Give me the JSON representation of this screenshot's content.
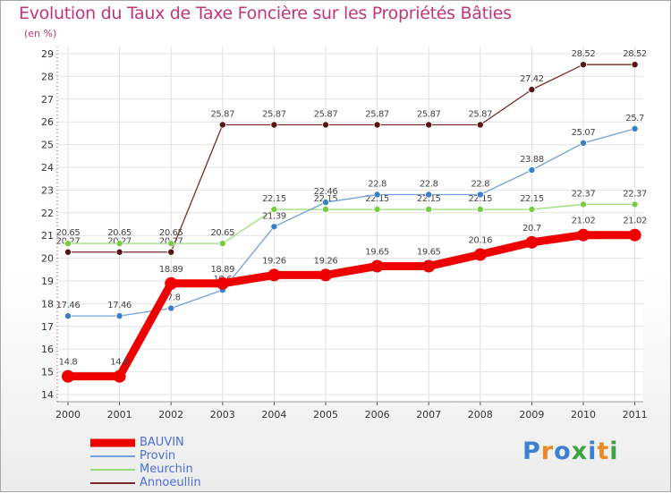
{
  "title": "Evolution du Taux de Taxe Foncière sur les Propriétés Bâties",
  "subtitle": "(en %)",
  "logo_text": "Proxiti",
  "logo_colors": [
    "#3d7fd1",
    "#e98a22",
    "#3d7fd1",
    "#3aa63d",
    "#3d7fd1",
    "#e98a22",
    "#3aa63d"
  ],
  "chart_data": {
    "type": "line",
    "title": "Evolution du Taux de Taxe Foncière sur les Propriétés Bâties",
    "ylabel": "(en %)",
    "xlabel": "",
    "ylim": [
      14,
      29
    ],
    "yticks": [
      "14",
      "15",
      "16",
      "17",
      "18",
      "19",
      "20",
      "21",
      "22",
      "23",
      "24",
      "25",
      "26",
      "27",
      "28",
      "29"
    ],
    "categories": [
      "2000",
      "2001",
      "2002",
      "2003",
      "2004",
      "2005",
      "2006",
      "2007",
      "2008",
      "2009",
      "2010",
      "2011"
    ],
    "grid": true,
    "legend_position": "bottom-left",
    "series": [
      {
        "name": "Annoeullin",
        "color": "#7a2a2a",
        "marker_color": "#5a1515",
        "values": [
          20.27,
          20.27,
          20.27,
          25.87,
          25.87,
          25.87,
          25.87,
          25.87,
          25.87,
          27.42,
          28.52,
          28.52
        ],
        "labels": [
          "20.27",
          "20.27",
          "20.27",
          "25.87",
          "25.87",
          "25.87",
          "25.87",
          "25.87",
          "25.87",
          "27.42",
          "28.52",
          "28.52"
        ]
      },
      {
        "name": "Meurchin",
        "color": "#99dd77",
        "marker_color": "#77cc44",
        "values": [
          20.65,
          20.65,
          20.65,
          20.65,
          22.15,
          22.15,
          22.15,
          22.15,
          22.15,
          22.15,
          22.37,
          22.37
        ],
        "labels": [
          "20.65",
          "20.65",
          "20.65",
          "20.65",
          "22.15",
          "22.15",
          "22.15",
          "22.15",
          "22.15",
          "22.15",
          "22.37",
          "22.37"
        ]
      },
      {
        "name": "Provin",
        "color": "#6fa0d8",
        "marker_color": "#3a7fc8",
        "values": [
          17.46,
          17.46,
          17.8,
          18.6,
          21.39,
          22.46,
          22.8,
          22.8,
          22.8,
          23.88,
          25.07,
          25.7
        ],
        "labels": [
          "17.46",
          "17.46",
          "17.8",
          "18.6",
          "21.39",
          "22.46",
          "22.8",
          "22.8",
          "22.8",
          "23.88",
          "25.07",
          "25.7"
        ]
      },
      {
        "name": "BAUVIN",
        "color": "#ee0000",
        "marker_color": "#ee0000",
        "values": [
          14.8,
          14.8,
          18.89,
          18.89,
          19.26,
          19.26,
          19.65,
          19.65,
          20.16,
          20.7,
          21.02,
          21.02
        ],
        "labels": [
          "14.8",
          "14.8",
          "18.89",
          "18.89",
          "19.26",
          "19.26",
          "19.65",
          "19.65",
          "20.16",
          "20.7",
          "21.02",
          "21.02"
        ]
      }
    ],
    "legend_order": [
      "BAUVIN",
      "Provin",
      "Meurchin",
      "Annoeullin"
    ]
  }
}
